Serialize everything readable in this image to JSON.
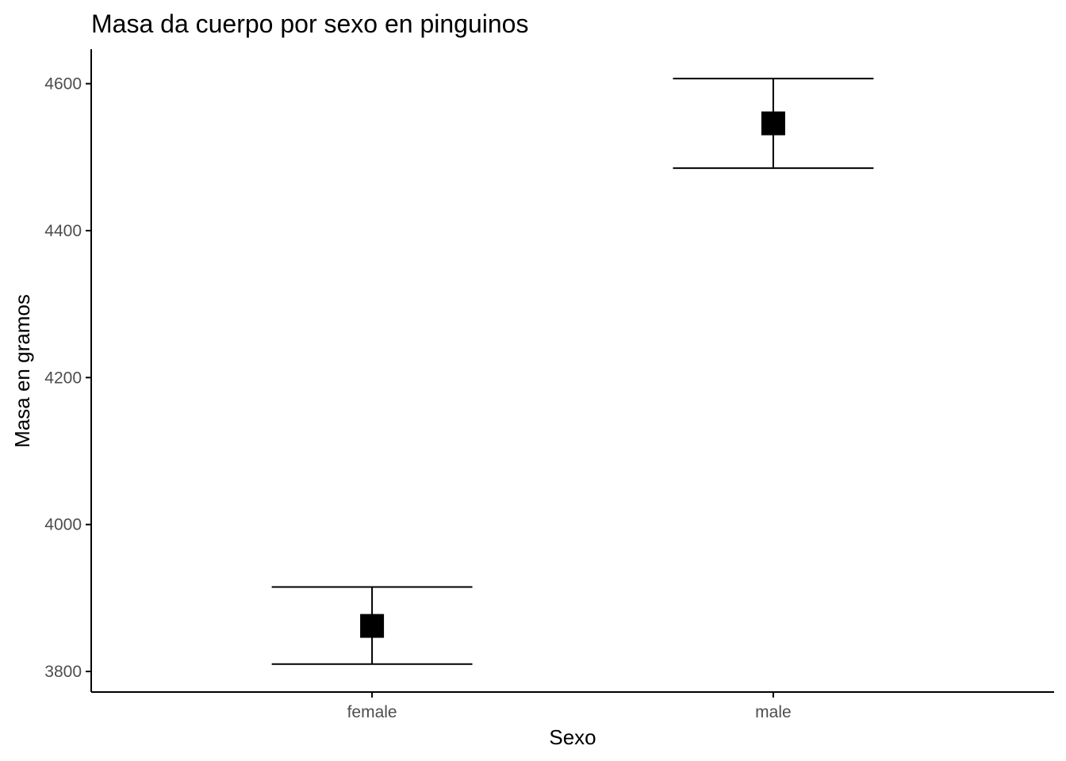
{
  "chart_data": {
    "type": "errorbar",
    "title": "Masa da cuerpo por sexo en pinguinos",
    "xlabel": "Sexo",
    "ylabel": "Masa en gramos",
    "categories": [
      "female",
      "male"
    ],
    "series": [
      {
        "points": [
          {
            "category": "female",
            "mean": 3862,
            "lower": 3810,
            "upper": 3915
          },
          {
            "category": "male",
            "mean": 4546,
            "lower": 4485,
            "upper": 4607
          }
        ]
      }
    ],
    "y_ticks": [
      3800,
      4000,
      4200,
      4400,
      4600
    ],
    "y_tick_labels": [
      "3800",
      "4000",
      "4200",
      "4400",
      "4600"
    ],
    "ylim": [
      3772,
      4647
    ],
    "grid": false,
    "colors": {
      "marker": "#000000",
      "errorbar": "#000000",
      "axis": "#000000",
      "tick_label": "#4d4d4d"
    }
  }
}
